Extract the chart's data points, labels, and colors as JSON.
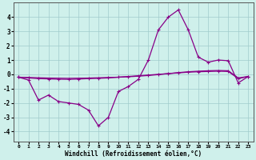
{
  "xlabel": "Windchill (Refroidissement éolien,°C)",
  "xlim": [
    -0.5,
    23.5
  ],
  "ylim": [
    -4.7,
    5.0
  ],
  "yticks": [
    -4,
    -3,
    -2,
    -1,
    0,
    1,
    2,
    3,
    4
  ],
  "xticks": [
    0,
    1,
    2,
    3,
    4,
    5,
    6,
    7,
    8,
    9,
    10,
    11,
    12,
    13,
    14,
    15,
    16,
    17,
    18,
    19,
    20,
    21,
    22,
    23
  ],
  "background_color": "#cff0eb",
  "grid_color": "#a0cccc",
  "line_color": "#880088",
  "curve1_x": [
    0,
    1,
    2,
    3,
    4,
    5,
    6,
    7,
    8,
    9,
    10,
    11,
    12,
    13,
    14,
    15,
    16,
    17,
    18,
    19,
    20,
    21,
    22,
    23
  ],
  "curve1_y": [
    -0.2,
    -0.4,
    -1.8,
    -1.45,
    -1.9,
    -2.0,
    -2.1,
    -2.5,
    -3.6,
    -3.0,
    -1.2,
    -0.85,
    -0.35,
    1.0,
    3.1,
    4.0,
    4.5,
    3.1,
    1.2,
    0.85,
    1.0,
    0.95,
    -0.6,
    -0.15
  ],
  "curve2_x": [
    0,
    1,
    2,
    3,
    4,
    5,
    6,
    7,
    8,
    9,
    10,
    11,
    12,
    13,
    14,
    15,
    16,
    17,
    18,
    19,
    20,
    21,
    22,
    23
  ],
  "curve2_y": [
    -0.2,
    -0.25,
    -0.3,
    -0.32,
    -0.34,
    -0.35,
    -0.33,
    -0.3,
    -0.28,
    -0.25,
    -0.2,
    -0.15,
    -0.1,
    -0.05,
    0.0,
    0.05,
    0.1,
    0.15,
    0.18,
    0.2,
    0.22,
    0.2,
    -0.3,
    -0.15
  ],
  "curve3_x": [
    0,
    1,
    2,
    3,
    4,
    5,
    6,
    7,
    8,
    9,
    10,
    11,
    12,
    13,
    14,
    15,
    16,
    17,
    18,
    19,
    20,
    21,
    22,
    23
  ],
  "curve3_y": [
    -0.2,
    -0.22,
    -0.24,
    -0.26,
    -0.27,
    -0.28,
    -0.27,
    -0.26,
    -0.24,
    -0.22,
    -0.2,
    -0.17,
    -0.13,
    -0.08,
    -0.02,
    0.05,
    0.12,
    0.18,
    0.22,
    0.25,
    0.27,
    0.25,
    -0.25,
    -0.15
  ]
}
